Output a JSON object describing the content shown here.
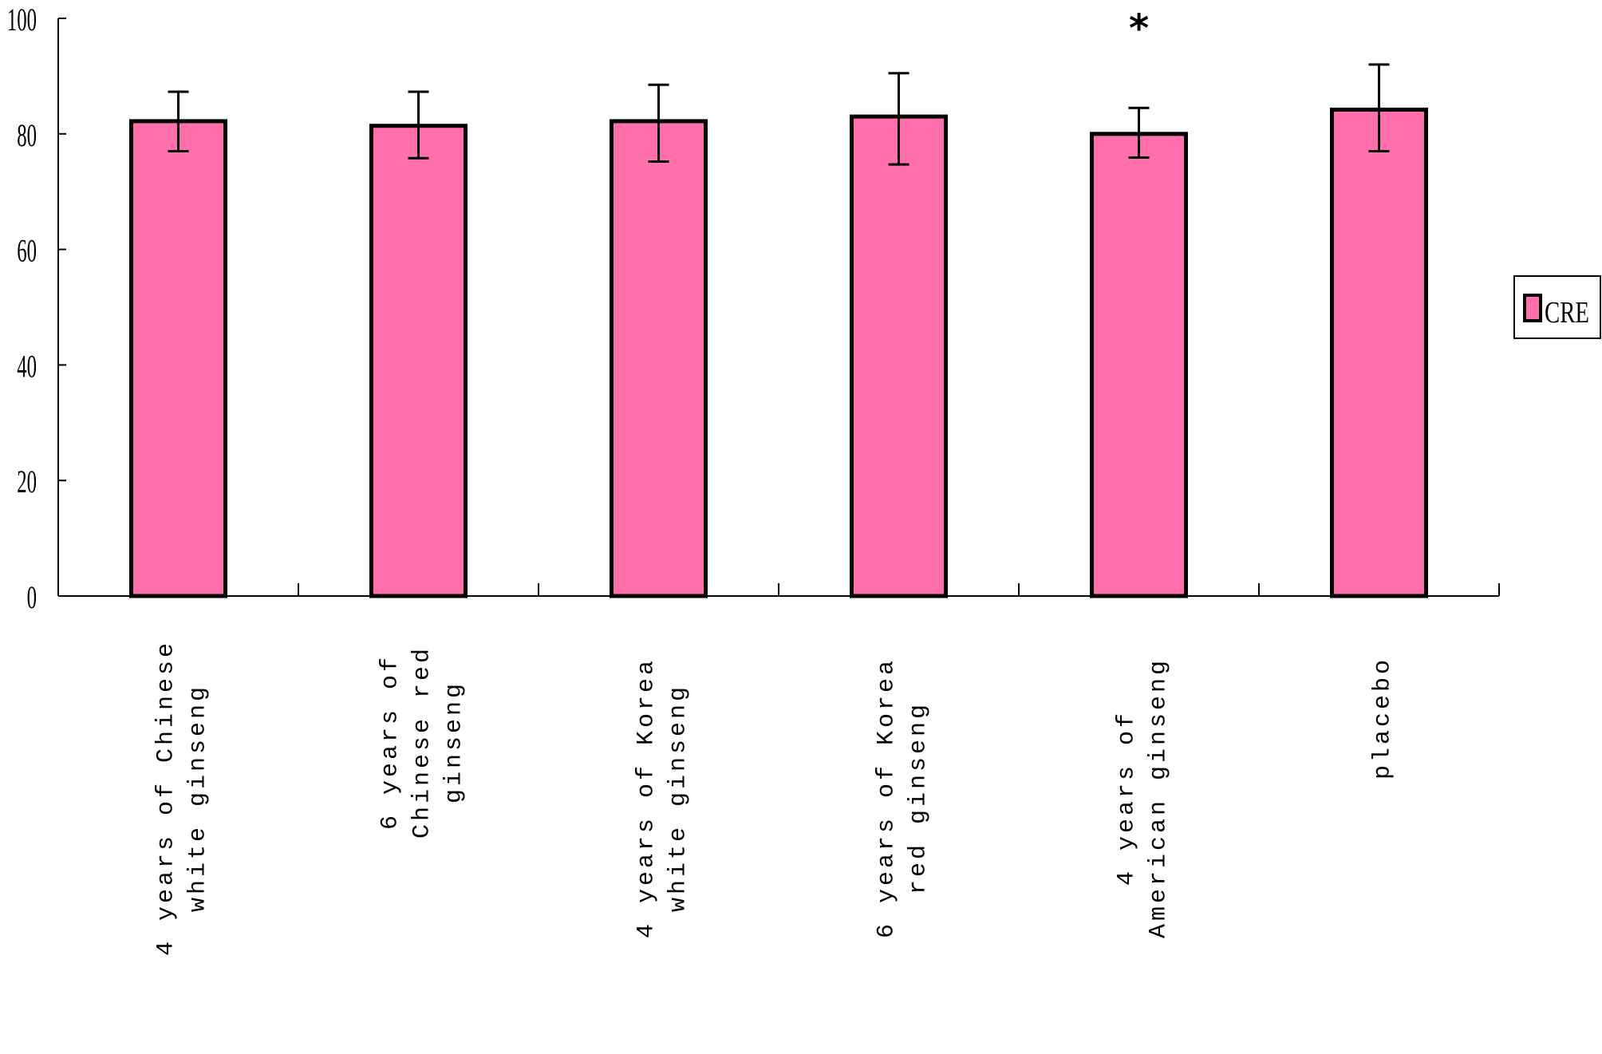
{
  "chart_data": {
    "type": "bar",
    "title": "",
    "xlabel": "",
    "ylabel": "",
    "ylim": [
      0,
      100
    ],
    "yticks": [
      0,
      20,
      40,
      60,
      80,
      100
    ],
    "grid": false,
    "legend_position": "right",
    "categories": [
      "4 years of Chinese white ginseng",
      "6 years of Chinese red ginseng",
      "4 years of Korea white ginseng",
      "6 years of Korea red ginseng",
      "4 years of American ginseng",
      "placebo"
    ],
    "category_label_lines": [
      [
        "4 years of Chinese",
        "white ginseng"
      ],
      [
        "6 years of",
        "Chinese red",
        "ginseng"
      ],
      [
        "4 years of Korea",
        "white ginseng"
      ],
      [
        "6 years of Korea",
        "red ginseng"
      ],
      [
        "4 years of",
        "American ginseng"
      ],
      [
        "placebo"
      ]
    ],
    "series": [
      {
        "name": "CRE",
        "color": "#FF6FAB",
        "values": [
          82.2,
          81.4,
          82.2,
          83.0,
          80.0,
          84.2
        ],
        "error_upper": [
          87.3,
          87.3,
          88.5,
          90.5,
          84.5,
          92.0
        ],
        "error_lower": [
          77.0,
          75.8,
          75.2,
          74.7,
          75.9,
          77.0
        ]
      }
    ],
    "annotations": [
      {
        "text": "*",
        "category": "4 years of American ginseng",
        "meaning": "significance marker"
      }
    ]
  },
  "legend": {
    "label": "CRE"
  },
  "colors": {
    "bar_fill": "#FF6FAB",
    "bar_edge": "#000000",
    "axis": "#000000"
  }
}
